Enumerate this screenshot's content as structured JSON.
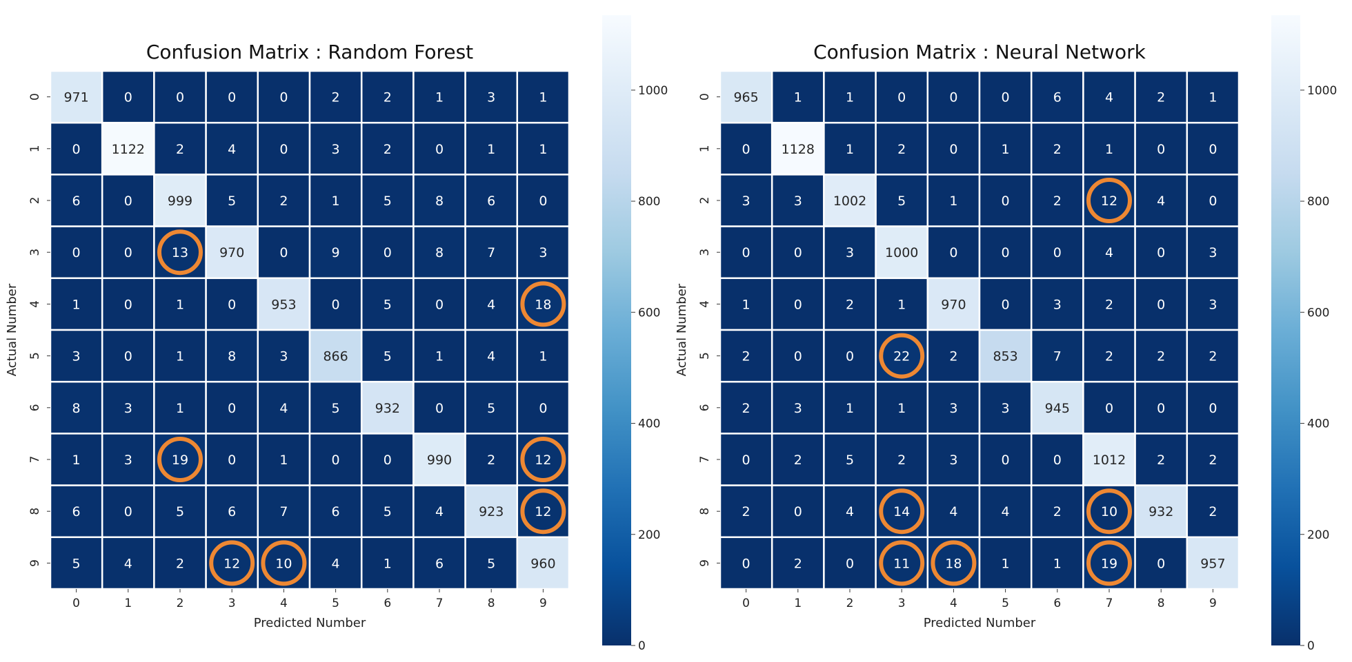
{
  "chart_data": [
    {
      "type": "heatmap",
      "title": "Confusion Matrix : Random Forest",
      "xlabel": "Predicted Number",
      "ylabel": "Actual Number",
      "x_categories": [
        "0",
        "1",
        "2",
        "3",
        "4",
        "5",
        "6",
        "7",
        "8",
        "9"
      ],
      "y_categories": [
        "0",
        "1",
        "2",
        "3",
        "4",
        "5",
        "6",
        "7",
        "8",
        "9"
      ],
      "colormap": "Blues_r",
      "color_range": [
        0,
        1135
      ],
      "colorbar_ticks": [
        0,
        200,
        400,
        600,
        800,
        1000
      ],
      "matrix": [
        [
          971,
          0,
          0,
          0,
          0,
          2,
          2,
          1,
          3,
          1
        ],
        [
          0,
          1122,
          2,
          4,
          0,
          3,
          2,
          0,
          1,
          1
        ],
        [
          6,
          0,
          999,
          5,
          2,
          1,
          5,
          8,
          6,
          0
        ],
        [
          0,
          0,
          13,
          970,
          0,
          9,
          0,
          8,
          7,
          3
        ],
        [
          1,
          0,
          1,
          0,
          953,
          0,
          5,
          0,
          4,
          18
        ],
        [
          3,
          0,
          1,
          8,
          3,
          866,
          5,
          1,
          4,
          1
        ],
        [
          8,
          3,
          1,
          0,
          4,
          5,
          932,
          0,
          5,
          0
        ],
        [
          1,
          3,
          19,
          0,
          1,
          0,
          0,
          990,
          2,
          12
        ],
        [
          6,
          0,
          5,
          6,
          7,
          6,
          5,
          4,
          923,
          12
        ],
        [
          5,
          4,
          2,
          12,
          10,
          4,
          1,
          6,
          5,
          960
        ]
      ],
      "highlighted_cells": [
        [
          3,
          2
        ],
        [
          4,
          9
        ],
        [
          7,
          2
        ],
        [
          7,
          9
        ],
        [
          8,
          9
        ],
        [
          9,
          3
        ],
        [
          9,
          4
        ]
      ],
      "highlight_color": "#ee8833"
    },
    {
      "type": "heatmap",
      "title": "Confusion Matrix : Neural Network",
      "xlabel": "Predicted Number",
      "ylabel": "Actual Number",
      "x_categories": [
        "0",
        "1",
        "2",
        "3",
        "4",
        "5",
        "6",
        "7",
        "8",
        "9"
      ],
      "y_categories": [
        "0",
        "1",
        "2",
        "3",
        "4",
        "5",
        "6",
        "7",
        "8",
        "9"
      ],
      "colormap": "Blues_r",
      "color_range": [
        0,
        1135
      ],
      "colorbar_ticks": [
        0,
        200,
        400,
        600,
        800,
        1000
      ],
      "matrix": [
        [
          965,
          1,
          1,
          0,
          0,
          0,
          6,
          4,
          2,
          1
        ],
        [
          0,
          1128,
          1,
          2,
          0,
          1,
          2,
          1,
          0,
          0
        ],
        [
          3,
          3,
          1002,
          5,
          1,
          0,
          2,
          12,
          4,
          0
        ],
        [
          0,
          0,
          3,
          1000,
          0,
          0,
          0,
          4,
          0,
          3
        ],
        [
          1,
          0,
          2,
          1,
          970,
          0,
          3,
          2,
          0,
          3
        ],
        [
          2,
          0,
          0,
          22,
          2,
          853,
          7,
          2,
          2,
          2
        ],
        [
          2,
          3,
          1,
          1,
          3,
          3,
          945,
          0,
          0,
          0
        ],
        [
          0,
          2,
          5,
          2,
          3,
          0,
          0,
          1012,
          2,
          2
        ],
        [
          2,
          0,
          4,
          14,
          4,
          4,
          2,
          10,
          932,
          2
        ],
        [
          0,
          2,
          0,
          11,
          18,
          1,
          1,
          19,
          0,
          957
        ]
      ],
      "highlighted_cells": [
        [
          2,
          7
        ],
        [
          5,
          3
        ],
        [
          8,
          3
        ],
        [
          8,
          7
        ],
        [
          9,
          3
        ],
        [
          9,
          4
        ],
        [
          9,
          7
        ]
      ],
      "highlight_color": "#ee8833"
    }
  ]
}
